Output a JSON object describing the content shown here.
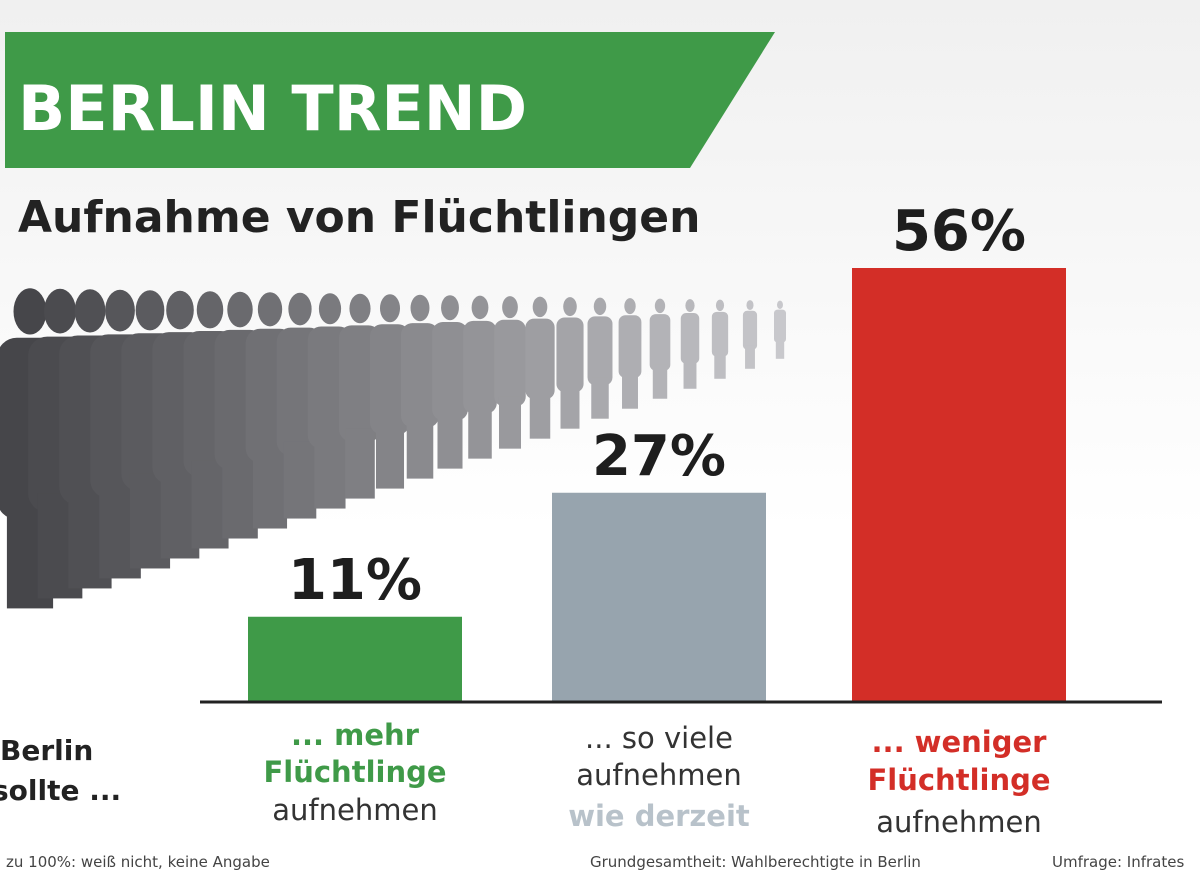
{
  "banner": "BERLIN TREND",
  "chart_data": {
    "type": "bar",
    "title": "Aufnahme von Flüchtlingen",
    "categories": [
      [
        "... mehr",
        "Flüchtlinge",
        "aufnehmen"
      ],
      [
        "... so viele",
        "aufnehmen",
        "wie derzeit"
      ],
      [
        "... weniger",
        "Flüchtlinge",
        "aufnehmen"
      ]
    ],
    "values": [
      11,
      27,
      56
    ],
    "value_labels": [
      "11%",
      "27%",
      "56%"
    ],
    "colors": [
      "#3f9a48",
      "#97a4ae",
      "#d32e27"
    ],
    "row_label": [
      "Berlin",
      "sollte ..."
    ]
  },
  "footer": {
    "left": "zu 100%: weiß nicht, keine Angabe",
    "center": "Grundgesamtheit: Wahlberechtigte in Berlin",
    "right": "Umfrage: Infrates"
  }
}
